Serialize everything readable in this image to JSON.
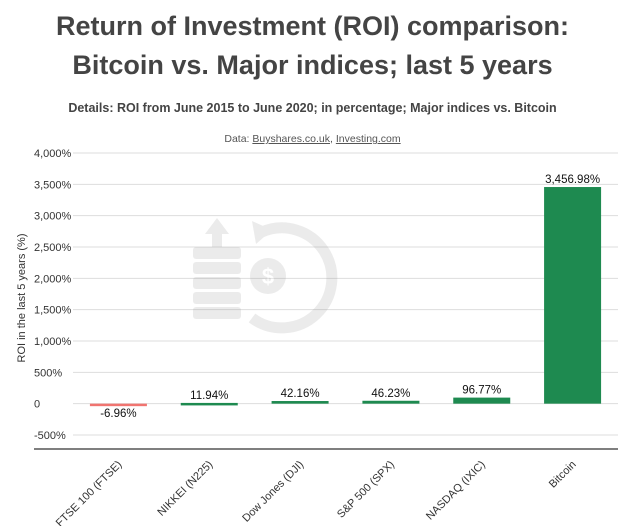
{
  "chart_data": {
    "type": "bar",
    "title_line1": "Return of Investment (ROI) comparison:",
    "title_line2": "Bitcoin vs. Major indices; last 5 years",
    "subtitle": "Details: ROI from June 2015 to June 2020; in percentage; Major indices vs. Bitcoin",
    "source_prefix": "Data: ",
    "source_link1": "Buyshares.co.uk",
    "source_sep": ", ",
    "source_link2": "Investing.com",
    "ylabel": "ROI in the last 5 years (%)",
    "xlabel": "",
    "ylim": [
      -500,
      4000
    ],
    "yticks": [
      -500,
      0,
      500,
      1000,
      1500,
      2000,
      2500,
      3000,
      3500,
      4000
    ],
    "ytick_labels": [
      "-500%",
      "0",
      "500%",
      "1,000%",
      "1,500%",
      "2,000%",
      "2,500%",
      "3,000%",
      "3,500%",
      "4,000%"
    ],
    "categories": [
      "FTSE 100 (FTSE)",
      "NIKKEI (N225)",
      "Dow Jones (DJI)",
      "S&P 500 (SPX)",
      "NASDAQ (IXIC)",
      "Bitcoin"
    ],
    "values": [
      -6.96,
      11.94,
      42.16,
      46.23,
      96.77,
      3456.98
    ],
    "value_labels": [
      "-6.96%",
      "11.94%",
      "42.16%",
      "46.23%",
      "96.77%",
      "3,456.98%"
    ],
    "colors": {
      "positive": "#1e8a50",
      "negative": "#f07470",
      "grid": "#dddddd",
      "axis": "#333333"
    },
    "grid": true
  },
  "watermark_icon": "investment-growth-icon"
}
